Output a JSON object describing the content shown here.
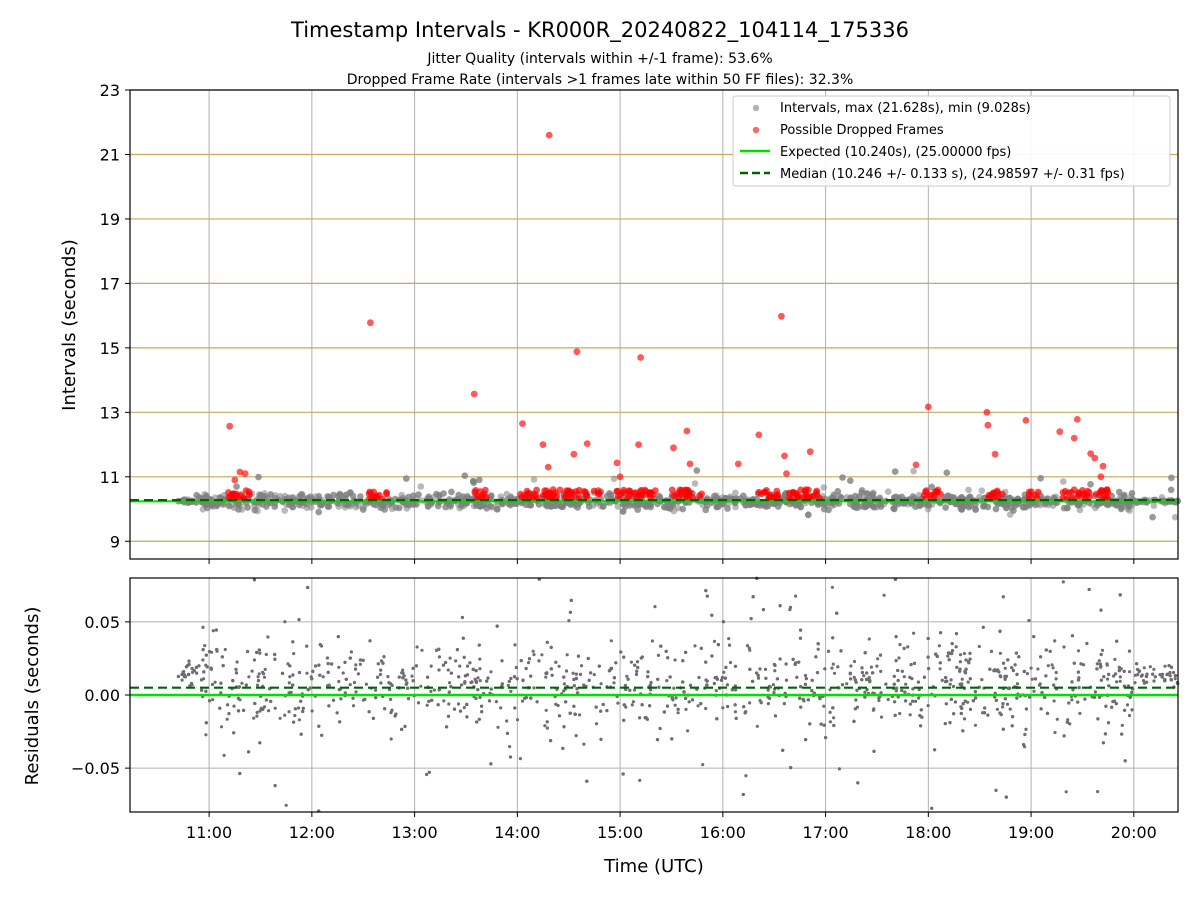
{
  "title": "Timestamp Intervals - KR000R_20240822_104114_175336",
  "subtitle_1": "Jitter Quality (intervals within +/-1 frame): 53.6%",
  "subtitle_2": "Dropped Frame Rate (intervals >1 frames late within 50 FF files): 32.3%",
  "colors": {
    "intervals": "#808080",
    "dropped": "#ff0000",
    "expected": "#00e000",
    "median": "#006400",
    "ygrid_top": "#c8a85a",
    "grid": "#b0b0b0"
  },
  "chart_data": [
    {
      "type": "scatter",
      "ylabel": "Intervals (seconds)",
      "ylim": [
        8.45,
        23
      ],
      "yticks": [
        "9",
        "11",
        "13",
        "15",
        "17",
        "19",
        "21",
        "23"
      ],
      "xlim_hours": [
        10.23,
        20.43
      ],
      "grid": true,
      "legend_position": "top-right",
      "legend": [
        "Intervals, max (21.628s), min (9.028s)",
        "Possible Dropped Frames",
        "Expected (10.240s), (25.00000 fps)",
        "Median (10.246 +/- 0.133 s), (24.98597 +/- 0.31 fps)"
      ],
      "expected": 10.24,
      "median": 10.246,
      "interval_range": [
        10.7,
        20.43
      ],
      "interval_min": 9.028,
      "interval_max": 21.628,
      "dropped_points": [
        [
          11.2,
          12.57
        ],
        [
          11.3,
          11.15
        ],
        [
          11.35,
          11.1
        ],
        [
          11.25,
          10.9
        ],
        [
          12.57,
          15.78
        ],
        [
          13.58,
          13.57
        ],
        [
          14.05,
          12.65
        ],
        [
          14.25,
          12.0
        ],
        [
          14.3,
          11.3
        ],
        [
          14.31,
          21.6
        ],
        [
          14.55,
          11.7
        ],
        [
          14.58,
          14.88
        ],
        [
          14.68,
          12.03
        ],
        [
          14.97,
          11.43
        ],
        [
          15.0,
          11.0
        ],
        [
          15.18,
          12.0
        ],
        [
          15.2,
          14.7
        ],
        [
          15.52,
          11.9
        ],
        [
          15.65,
          12.42
        ],
        [
          15.68,
          11.4
        ],
        [
          16.15,
          11.4
        ],
        [
          16.35,
          12.3
        ],
        [
          16.57,
          15.98
        ],
        [
          16.6,
          11.65
        ],
        [
          16.62,
          11.1
        ],
        [
          16.85,
          11.78
        ],
        [
          17.88,
          11.37
        ],
        [
          18.0,
          13.17
        ],
        [
          18.57,
          13.0
        ],
        [
          18.58,
          12.6
        ],
        [
          18.65,
          11.7
        ],
        [
          18.95,
          12.75
        ],
        [
          19.28,
          12.4
        ],
        [
          19.42,
          12.2
        ],
        [
          19.45,
          12.78
        ],
        [
          19.58,
          11.72
        ],
        [
          19.62,
          11.58
        ],
        [
          19.68,
          11.0
        ],
        [
          19.7,
          11.33
        ]
      ],
      "dropped_clusters": [
        [
          11.18,
          11.4
        ],
        [
          12.55,
          12.73
        ],
        [
          13.58,
          13.72
        ],
        [
          14.03,
          14.2
        ],
        [
          14.25,
          14.8
        ],
        [
          14.95,
          15.35
        ],
        [
          15.5,
          15.8
        ],
        [
          16.35,
          16.55
        ],
        [
          16.6,
          16.95
        ],
        [
          17.95,
          18.12
        ],
        [
          18.58,
          18.72
        ],
        [
          18.98,
          19.08
        ],
        [
          19.3,
          19.75
        ]
      ]
    },
    {
      "type": "scatter",
      "ylabel": "Residuals (seconds)",
      "xlabel": "Time (UTC)",
      "ylim": [
        -0.08,
        0.08
      ],
      "yticks": [
        "0.05",
        "0.00",
        "−0.05"
      ],
      "yticks_values": [
        0.05,
        0.0,
        -0.05
      ],
      "xticks": [
        "11:00",
        "12:00",
        "13:00",
        "14:00",
        "15:00",
        "16:00",
        "17:00",
        "18:00",
        "19:00",
        "20:00"
      ],
      "xticks_hours": [
        11,
        12,
        13,
        14,
        15,
        16,
        17,
        18,
        19,
        20
      ],
      "grid": true,
      "expected_residual": 0.0,
      "median_residual": 0.005
    }
  ]
}
